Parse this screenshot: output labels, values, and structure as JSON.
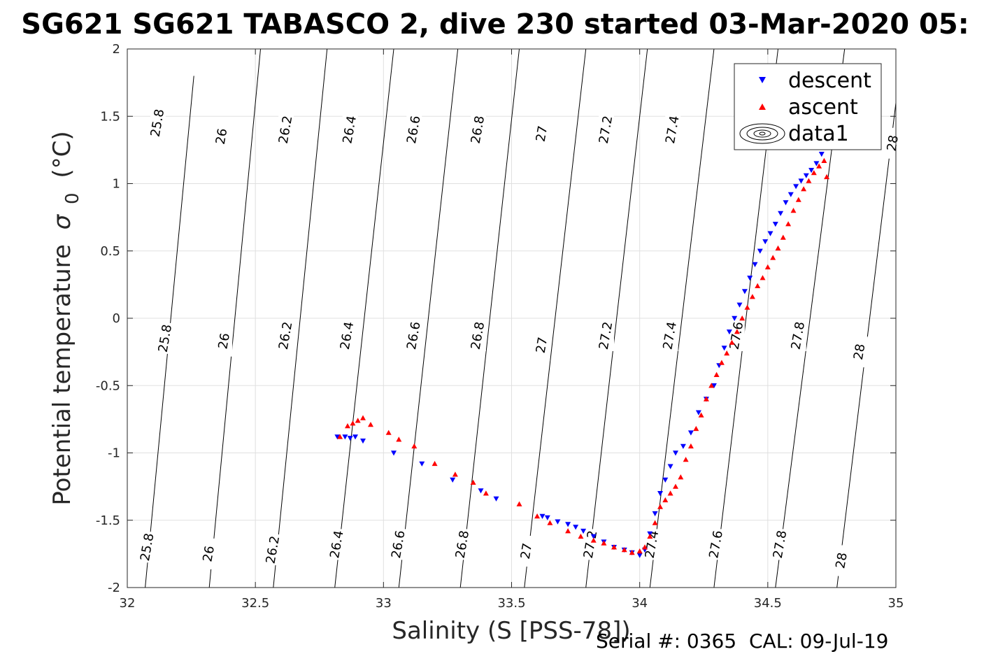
{
  "chart_data": {
    "type": "scatter",
    "title": "SG621 SG621 TABASCO 2, dive 230 started 03-Mar-2020 05:",
    "xlabel": "Salinity (S [PSS-78])",
    "ylabel_main": "Potential temperature",
    "ylabel_symbol": "σ",
    "ylabel_subscript": "0",
    "ylabel_unit": "(°C)",
    "xlim": [
      32,
      35
    ],
    "ylim": [
      -2,
      2
    ],
    "xticks": [
      32,
      32.5,
      33,
      33.5,
      34,
      34.5,
      35
    ],
    "xtick_labels": [
      "32",
      "32.5",
      "33",
      "33.5",
      "34",
      "34.5",
      "35"
    ],
    "yticks": [
      -2,
      -1.5,
      -1,
      -0.5,
      0,
      0.5,
      1,
      1.5,
      2
    ],
    "ytick_labels": [
      "-2",
      "-1.5",
      "-1",
      "-0.5",
      "0",
      "0.5",
      "1",
      "1.5",
      "2"
    ],
    "grid": true,
    "legend_position": "top-right",
    "legend": [
      {
        "label": "descent",
        "marker": "triangle-down",
        "color": "#0000ff"
      },
      {
        "label": "ascent",
        "marker": "triangle-up",
        "color": "#ff0000"
      },
      {
        "label": "data1",
        "marker": "contour",
        "color": "#000000"
      }
    ],
    "density_contours": {
      "levels": [
        "25.8",
        "26",
        "26.2",
        "26.4",
        "26.6",
        "26.8",
        "27",
        "27.2",
        "27.4",
        "27.6",
        "27.8",
        "28"
      ],
      "lines": [
        {
          "level": "25.8",
          "pts": [
            [
              32.07,
              -2
            ],
            [
              32.26,
              1.8
            ]
          ]
        },
        {
          "level": "26",
          "pts": [
            [
              32.32,
              -2
            ],
            [
              32.52,
              2
            ]
          ]
        },
        {
          "level": "26.2",
          "pts": [
            [
              32.57,
              -2
            ],
            [
              32.78,
              2
            ]
          ]
        },
        {
          "level": "26.4",
          "pts": [
            [
              32.81,
              -2
            ],
            [
              33.04,
              2
            ]
          ]
        },
        {
          "level": "26.6",
          "pts": [
            [
              33.06,
              -2
            ],
            [
              33.29,
              2
            ]
          ]
        },
        {
          "level": "26.8",
          "pts": [
            [
              33.3,
              -2
            ],
            [
              33.53,
              2
            ]
          ]
        },
        {
          "level": "27",
          "pts": [
            [
              33.55,
              -2
            ],
            [
              33.79,
              2
            ]
          ]
        },
        {
          "level": "27.2",
          "pts": [
            [
              33.79,
              -2
            ],
            [
              34.03,
              2
            ]
          ]
        },
        {
          "level": "27.4",
          "pts": [
            [
              34.04,
              -2
            ],
            [
              34.29,
              2
            ]
          ]
        },
        {
          "level": "27.6",
          "pts": [
            [
              34.29,
              -2
            ],
            [
              34.54,
              2
            ]
          ]
        },
        {
          "level": "27.8",
          "pts": [
            [
              34.53,
              -2
            ],
            [
              34.8,
              2
            ]
          ]
        },
        {
          "level": "28",
          "pts": [
            [
              34.77,
              -2
            ],
            [
              35.0,
              1.6
            ]
          ]
        }
      ],
      "label_positions": [
        {
          "label": "25.8",
          "pts": [
            [
              32.12,
              1.45
            ],
            [
              32.15,
              -0.15
            ],
            [
              32.08,
              -1.7
            ]
          ]
        },
        {
          "label": "26",
          "pts": [
            [
              32.37,
              1.35
            ],
            [
              32.38,
              -0.17
            ],
            [
              32.32,
              -1.75
            ]
          ]
        },
        {
          "label": "26.2",
          "pts": [
            [
              32.62,
              1.4
            ],
            [
              32.62,
              -0.13
            ],
            [
              32.57,
              -1.72
            ]
          ]
        },
        {
          "label": "26.4",
          "pts": [
            [
              32.87,
              1.4
            ],
            [
              32.86,
              -0.13
            ],
            [
              32.82,
              -1.68
            ]
          ]
        },
        {
          "label": "26.6",
          "pts": [
            [
              33.12,
              1.4
            ],
            [
              33.12,
              -0.13
            ],
            [
              33.06,
              -1.68
            ]
          ]
        },
        {
          "label": "26.8",
          "pts": [
            [
              33.37,
              1.4
            ],
            [
              33.37,
              -0.13
            ],
            [
              33.31,
              -1.68
            ]
          ]
        },
        {
          "label": "27",
          "pts": [
            [
              33.62,
              1.37
            ],
            [
              33.62,
              -0.2
            ],
            [
              33.56,
              -1.73
            ]
          ]
        },
        {
          "label": "27.2",
          "pts": [
            [
              33.87,
              1.4
            ],
            [
              33.87,
              -0.13
            ],
            [
              33.81,
              -1.68
            ]
          ]
        },
        {
          "label": "27.4",
          "pts": [
            [
              34.13,
              1.4
            ],
            [
              34.12,
              -0.13
            ],
            [
              34.05,
              -1.68
            ]
          ]
        },
        {
          "label": "27.6",
          "pts": [
            [
              34.38,
              -0.13
            ],
            [
              34.3,
              -1.68
            ]
          ]
        },
        {
          "label": "27.8",
          "pts": [
            [
              34.62,
              -0.13
            ],
            [
              34.55,
              -1.68
            ]
          ]
        },
        {
          "label": "28",
          "pts": [
            [
              34.99,
              1.3
            ],
            [
              34.86,
              -0.25
            ],
            [
              34.79,
              -1.8
            ]
          ]
        }
      ]
    },
    "series": [
      {
        "name": "descent",
        "marker": "triangle-down",
        "color": "#0000ff",
        "x": [
          32.82,
          32.85,
          32.87,
          32.89,
          32.92,
          33.04,
          33.15,
          33.27,
          33.38,
          33.44,
          33.62,
          33.64,
          33.68,
          33.72,
          33.75,
          33.78,
          33.82,
          33.86,
          33.9,
          33.94,
          33.97,
          34.0,
          34.02,
          34.04,
          34.06,
          34.08,
          34.1,
          34.12,
          34.14,
          34.17,
          34.2,
          34.23,
          34.26,
          34.29,
          34.31,
          34.33,
          34.35,
          34.37,
          34.39,
          34.41,
          34.43,
          34.45,
          34.47,
          34.49,
          34.51,
          34.53,
          34.55,
          34.57,
          34.59,
          34.61,
          34.63,
          34.65,
          34.67,
          34.69,
          34.71,
          34.73
        ],
        "y": [
          -0.88,
          -0.88,
          -0.89,
          -0.88,
          -0.91,
          -1.0,
          -1.08,
          -1.2,
          -1.28,
          -1.34,
          -1.47,
          -1.48,
          -1.51,
          -1.53,
          -1.55,
          -1.58,
          -1.62,
          -1.66,
          -1.7,
          -1.72,
          -1.74,
          -1.76,
          -1.72,
          -1.6,
          -1.45,
          -1.3,
          -1.2,
          -1.1,
          -1.0,
          -0.95,
          -0.85,
          -0.7,
          -0.6,
          -0.5,
          -0.35,
          -0.22,
          -0.1,
          0.0,
          0.1,
          0.2,
          0.3,
          0.4,
          0.5,
          0.57,
          0.63,
          0.7,
          0.78,
          0.86,
          0.92,
          0.98,
          1.02,
          1.06,
          1.1,
          1.15,
          1.22,
          1.28
        ]
      },
      {
        "name": "ascent",
        "marker": "triangle-up",
        "color": "#ff0000",
        "x": [
          32.83,
          32.86,
          32.88,
          32.9,
          32.92,
          32.95,
          33.02,
          33.06,
          33.12,
          33.2,
          33.28,
          33.35,
          33.4,
          33.53,
          33.6,
          33.65,
          33.72,
          33.77,
          33.82,
          33.86,
          33.9,
          33.94,
          33.97,
          34.0,
          34.02,
          34.04,
          34.06,
          34.08,
          34.1,
          34.12,
          34.14,
          34.16,
          34.18,
          34.2,
          34.22,
          34.24,
          34.26,
          34.28,
          34.3,
          34.32,
          34.34,
          34.36,
          34.38,
          34.4,
          34.42,
          34.44,
          34.46,
          34.48,
          34.5,
          34.52,
          34.54,
          34.56,
          34.58,
          34.6,
          34.62,
          34.64,
          34.66,
          34.68,
          34.7,
          34.72,
          34.73
        ],
        "y": [
          -0.88,
          -0.8,
          -0.78,
          -0.76,
          -0.74,
          -0.79,
          -0.85,
          -0.9,
          -0.95,
          -1.08,
          -1.16,
          -1.22,
          -1.3,
          -1.38,
          -1.47,
          -1.52,
          -1.58,
          -1.62,
          -1.65,
          -1.67,
          -1.7,
          -1.72,
          -1.74,
          -1.73,
          -1.7,
          -1.62,
          -1.52,
          -1.4,
          -1.35,
          -1.3,
          -1.25,
          -1.18,
          -1.05,
          -0.95,
          -0.82,
          -0.72,
          -0.6,
          -0.5,
          -0.42,
          -0.33,
          -0.26,
          -0.18,
          -0.1,
          0.0,
          0.08,
          0.16,
          0.24,
          0.3,
          0.38,
          0.45,
          0.52,
          0.6,
          0.7,
          0.8,
          0.88,
          0.96,
          1.02,
          1.08,
          1.13,
          1.17,
          1.05
        ]
      }
    ]
  },
  "footer": {
    "serial_label": "Serial #: 0365",
    "cal_label": "CAL: 09-Jul-19"
  }
}
